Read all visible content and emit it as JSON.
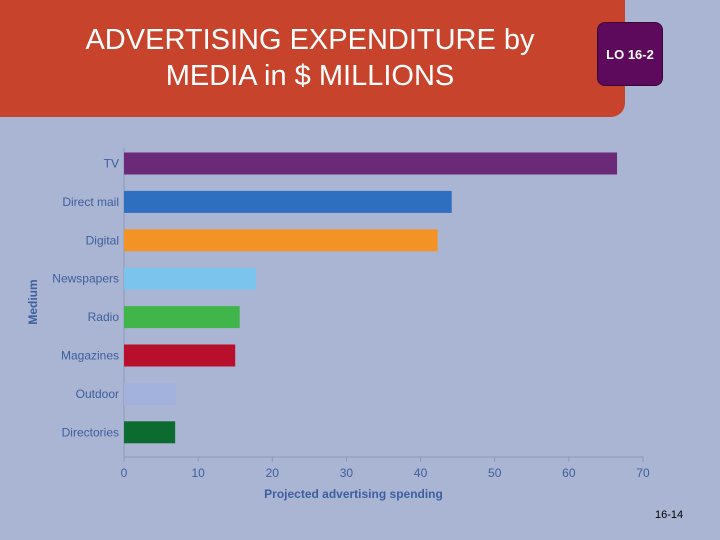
{
  "slide": {
    "title_line1": "ADVERTISING EXPENDITURE by",
    "title_line2": "MEDIA in $ MILLIONS",
    "lo_badge": "LO 16-2",
    "slide_number": "16-14"
  },
  "colors": {
    "title_panel": "#c8432c",
    "lo_badge": "#5d0a5c",
    "background": "#aab4d3"
  },
  "chart_data": {
    "type": "bar",
    "orientation": "horizontal",
    "categories": [
      "TV",
      "Direct mail",
      "Digital",
      "Newspapers",
      "Radio",
      "Magazines",
      "Outdoor",
      "Directories"
    ],
    "values": [
      66.5,
      44.2,
      42.3,
      17.8,
      15.6,
      15.0,
      7.0,
      6.9
    ],
    "colors": [
      "#6a2a77",
      "#2f6fbf",
      "#f39325",
      "#7bc4ee",
      "#3fb54a",
      "#b8102c",
      "#a3b1dd",
      "#0c6b2e"
    ],
    "xlabel": "Projected advertising spending",
    "ylabel": "Medium",
    "xlim": [
      0,
      70
    ],
    "xticks": [
      0,
      10,
      20,
      30,
      40,
      50,
      60,
      70
    ],
    "grid": false,
    "legend": "none"
  }
}
